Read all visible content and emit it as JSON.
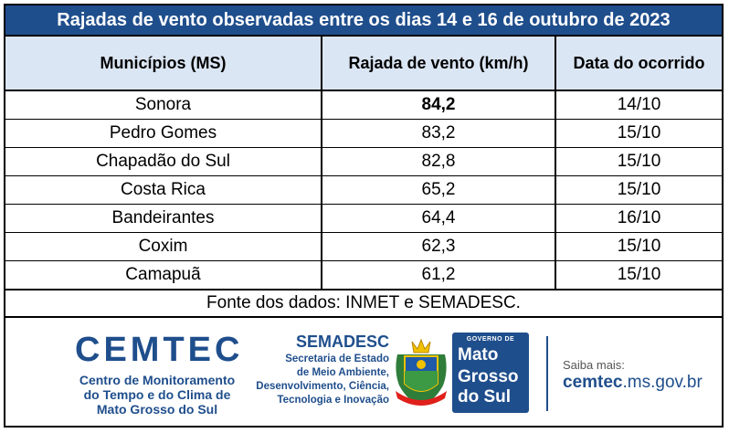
{
  "title": "Rajadas de vento observadas entre os dias 14 e 16 de outubro de 2023",
  "table": {
    "headers": [
      "Municípios (MS)",
      "Rajada de vento (km/h)",
      "Data do ocorrido"
    ],
    "rows": [
      {
        "municipio": "Sonora",
        "rajada": "84,2",
        "data": "14/10"
      },
      {
        "municipio": "Pedro Gomes",
        "rajada": "83,2",
        "data": "15/10"
      },
      {
        "municipio": "Chapadão do Sul",
        "rajada": "82,8",
        "data": "15/10"
      },
      {
        "municipio": "Costa Rica",
        "rajada": "65,2",
        "data": "15/10"
      },
      {
        "municipio": "Bandeirantes",
        "rajada": "64,4",
        "data": "16/10"
      },
      {
        "municipio": "Coxim",
        "rajada": "62,3",
        "data": "15/10"
      },
      {
        "municipio": "Camapuã",
        "rajada": "61,2",
        "data": "15/10"
      }
    ]
  },
  "source": "Fonte dos dados: INMET e SEMADESC.",
  "logos": {
    "cemtec": {
      "name": "CEMTEC",
      "lines": [
        "Centro de Monitoramento",
        "do Tempo e do Clima de",
        "Mato Grosso do Sul"
      ]
    },
    "semadesc": {
      "name": "SEMADESC",
      "lines": [
        "Secretaria de Estado",
        "de Meio Ambiente,",
        "Desenvolvimento, Ciência,",
        "Tecnologia e Inovação"
      ]
    },
    "governo": {
      "top": "GOVERNO DE",
      "l1": "Mato",
      "l2": "Grosso",
      "l3": "do Sul"
    },
    "saiba_mais": "Saiba mais:",
    "site_bold": "cemtec",
    "site_rest": ".ms.gov.br"
  },
  "colors": {
    "header_bg": "#1f4e8c",
    "column_header_bg": "#dbe6f4",
    "highlight": "#e0201b"
  }
}
